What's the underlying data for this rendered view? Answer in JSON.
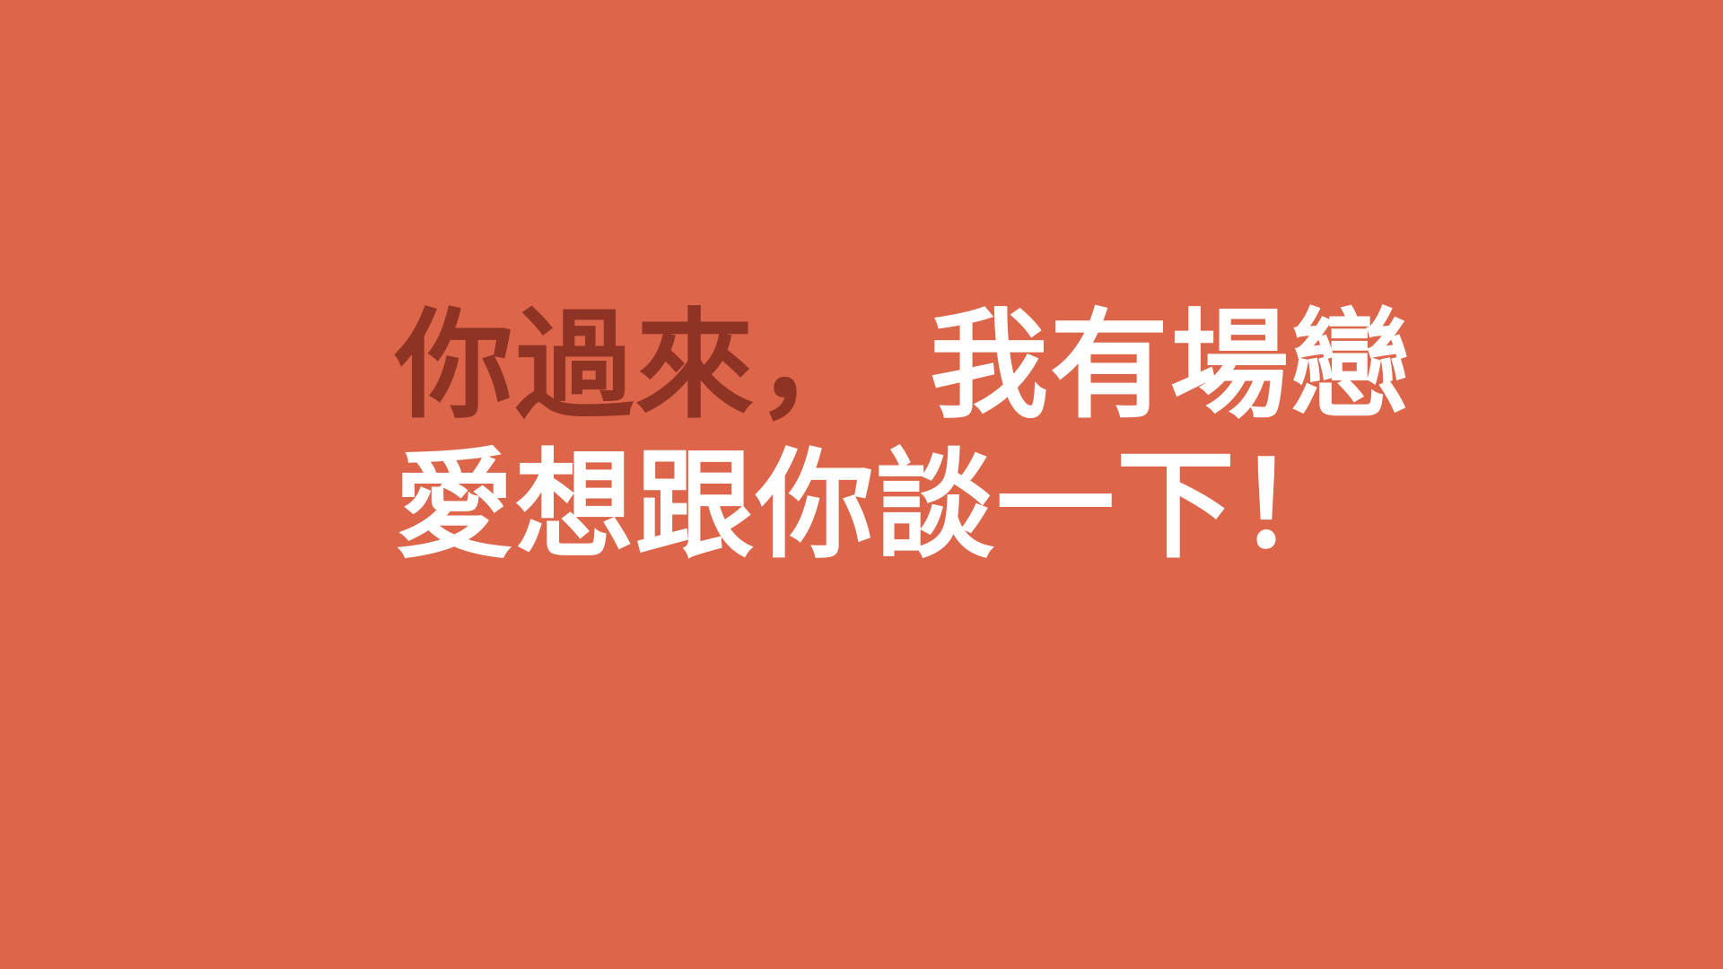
{
  "colors": {
    "background": "#dc654a",
    "accent_text": "#8f3324",
    "main_text": "#ffffff"
  },
  "headline": {
    "line1_part1": "你過來，",
    "line1_part2": "我有場戀",
    "line2": "愛想跟你談一下！"
  }
}
